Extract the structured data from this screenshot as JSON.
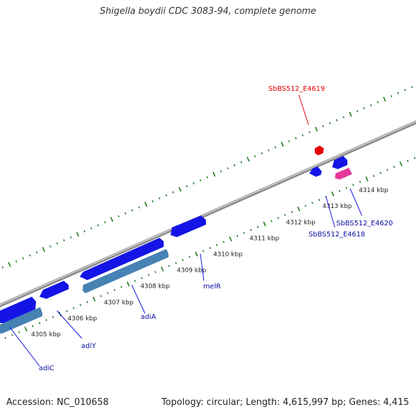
{
  "title": "Shigella boydii CDC 3083-94, complete genome",
  "accession": "Accession: NC_010658",
  "topology": "Topology: circular; Length: 4,615,997 bp; Genes: 4,415",
  "colors": {
    "backbone": "#8c8c8c",
    "tick": "#1f7a1f",
    "gene": "#1414e6",
    "gene_label": "#0a0aa0",
    "rna": "#4682b4",
    "highlight": "#e60000",
    "misc": "#e6399b"
  },
  "ticks": [
    {
      "label": "4305 kbp"
    },
    {
      "label": "4306 kbp"
    },
    {
      "label": "4307 kbp"
    },
    {
      "label": "4308 kbp"
    },
    {
      "label": "4309 kbp"
    },
    {
      "label": "4310 kbp"
    },
    {
      "label": "4311 kbp"
    },
    {
      "label": "4312 kbp"
    },
    {
      "label": "4313 kbp"
    },
    {
      "label": "4314 kbp"
    }
  ],
  "genes": [
    {
      "label": "adiC",
      "color": "gene_label"
    },
    {
      "label": "adiY",
      "color": "gene_label"
    },
    {
      "label": "adiA",
      "color": "gene_label"
    },
    {
      "label": "melR",
      "color": "gene_label"
    },
    {
      "label": "SbBS512_E4618",
      "color": "gene_label"
    },
    {
      "label": "SbBS512_E4620",
      "color": "gene_label"
    },
    {
      "label": "SbBS512_E4619",
      "color": "highlight"
    }
  ]
}
